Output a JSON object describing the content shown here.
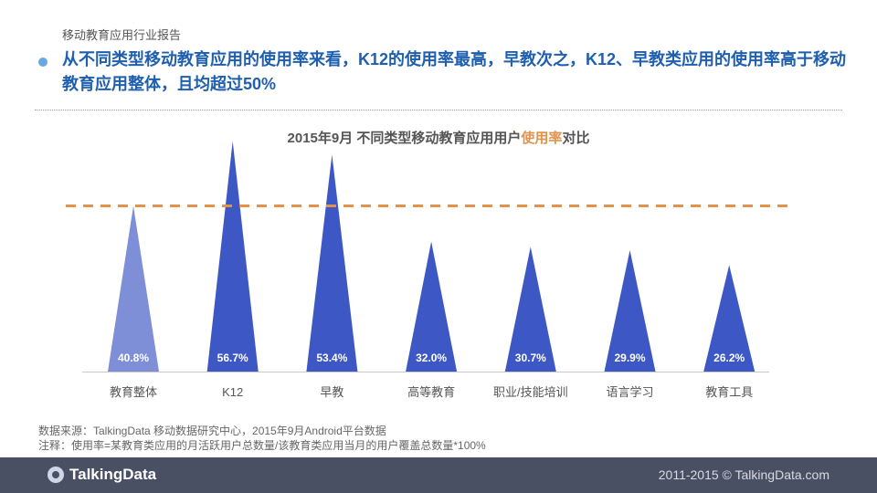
{
  "header": {
    "report_label": "移动教育应用行业报告",
    "headline": "从不同类型移动教育应用的使用率来看，K12的使用率最高，早教次之，K12、早教类应用的使用率高于移动教育应用整体，且均超过50%"
  },
  "chart_data": {
    "type": "bar",
    "title_prefix": "2015年9月 不同类型移动教育应用用户",
    "title_highlight": "使用率",
    "title_suffix": "对比",
    "categories": [
      "教育整体",
      "K12",
      "早教",
      "高等教育",
      "职业/技能培训",
      "语言学习",
      "教育工具"
    ],
    "values": [
      40.8,
      56.7,
      53.4,
      32.0,
      30.7,
      29.9,
      26.2
    ],
    "value_labels": [
      "40.8%",
      "56.7%",
      "53.4%",
      "32.0%",
      "30.7%",
      "29.9%",
      "26.2%"
    ],
    "reference_line": 40.8,
    "ylim": [
      0,
      60
    ],
    "colors": {
      "first_bar": "#7e8fd8",
      "bar": "#3d57c4",
      "reference": "#e2924a"
    }
  },
  "footnotes": {
    "source": "数据来源：TalkingData 移动数据研究中心，2015年9月Android平台数据",
    "note": "注释：使用率=某教育类应用的月活跃用户总数量/该教育类应用当月的用户覆盖总数量*100%"
  },
  "footer": {
    "logo_text": "TalkingData",
    "copyright": "2011-2015 © TalkingData.com"
  }
}
